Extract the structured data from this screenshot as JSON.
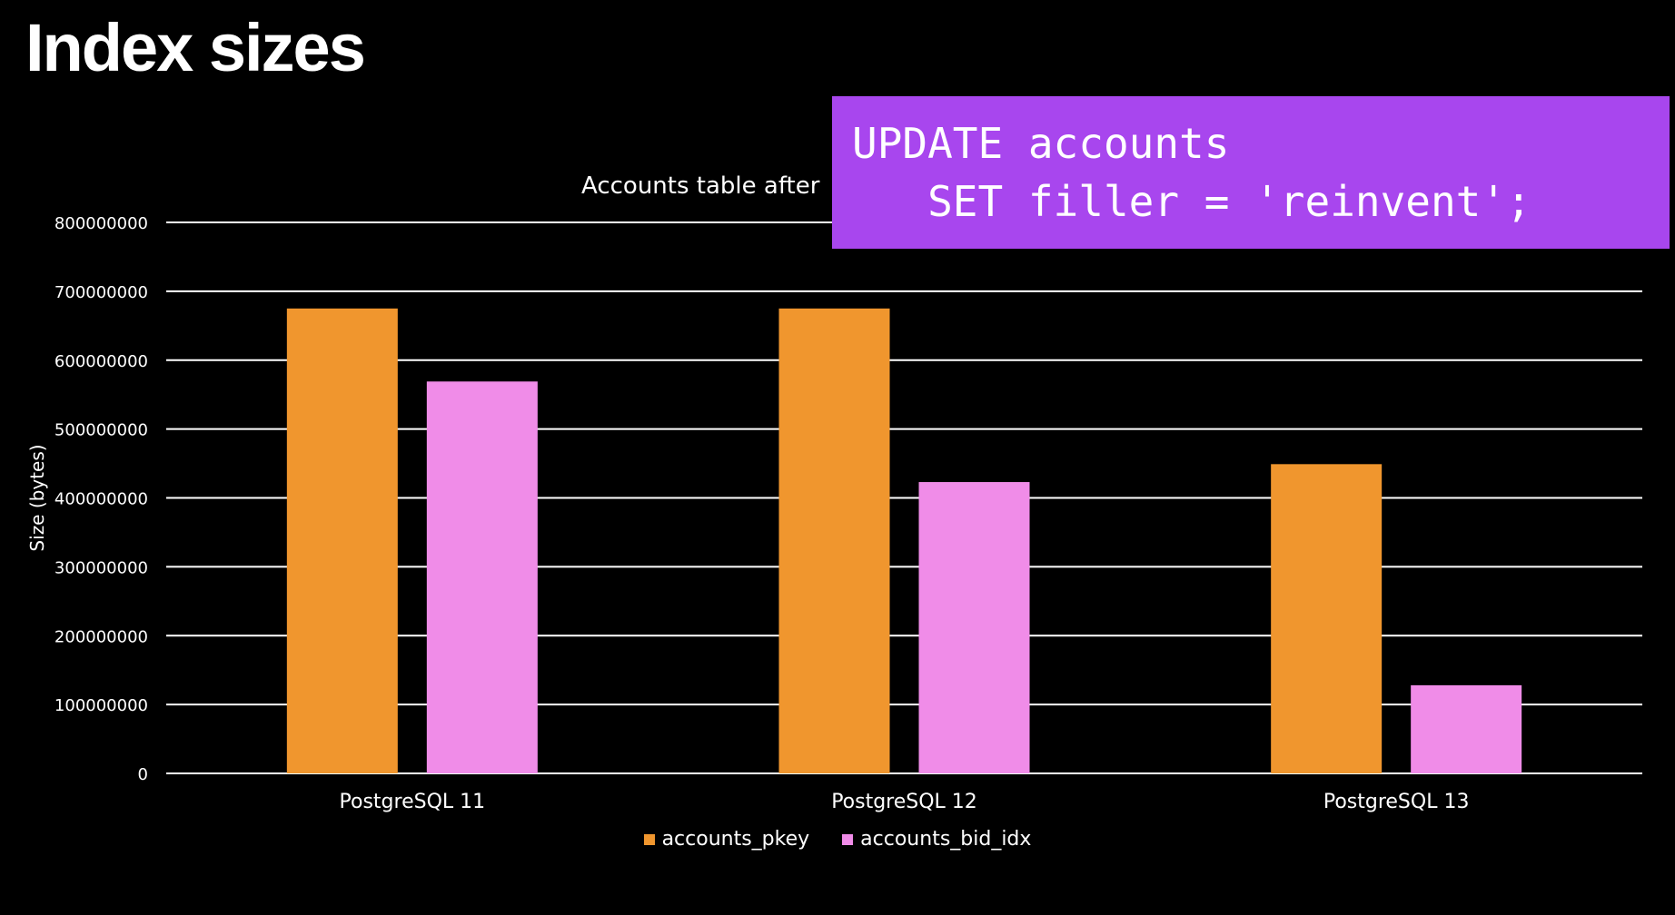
{
  "slide": {
    "title": "Index sizes"
  },
  "code": {
    "lines": [
      "UPDATE accounts",
      "   SET filler = 'reinvent';"
    ]
  },
  "colors": {
    "background": "#000000",
    "code_box": "#a846ee",
    "accounts_pkey": "#f0962e",
    "accounts_bid_idx": "#f08ce8",
    "gridline": "#ffffff"
  },
  "chart_data": {
    "type": "bar",
    "title": "Accounts table after",
    "xlabel": "",
    "ylabel": "Size (bytes)",
    "categories": [
      "PostgreSQL 11",
      "PostgreSQL 12",
      "PostgreSQL 13"
    ],
    "series": [
      {
        "name": "accounts_pkey",
        "color": "#f0962e",
        "values": [
          675000000,
          675000000,
          449000000
        ]
      },
      {
        "name": "accounts_bid_idx",
        "color": "#f08ce8",
        "values": [
          569000000,
          423000000,
          128000000
        ]
      }
    ],
    "ylim": [
      0,
      800000000
    ],
    "yticks": [
      "0",
      "100000000",
      "200000000",
      "300000000",
      "400000000",
      "500000000",
      "600000000",
      "700000000",
      "800000000"
    ],
    "grid": true,
    "legend_position": "bottom"
  }
}
